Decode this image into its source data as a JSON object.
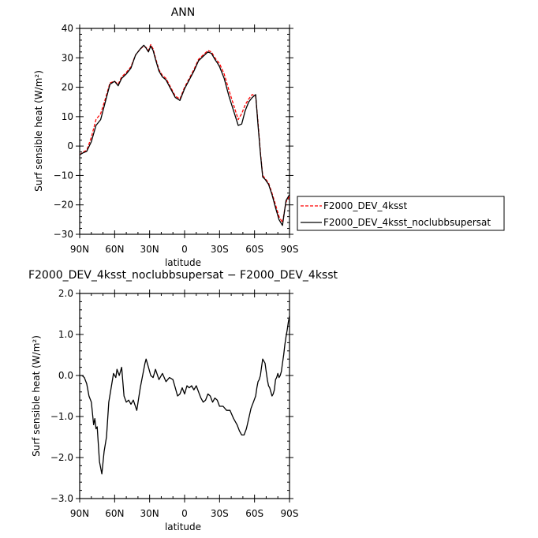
{
  "chart_data": [
    {
      "type": "line",
      "title": "ANN",
      "xlabel": "latitude",
      "ylabel": "Surf sensible heat (W/m²)",
      "x_ticks": [
        90,
        60,
        30,
        0,
        -30,
        -60,
        -90
      ],
      "x_tick_labels": [
        "90N",
        "60N",
        "30N",
        "0",
        "30S",
        "60S",
        "90S"
      ],
      "xlim": [
        90,
        -90
      ],
      "y_ticks": [
        40,
        30,
        20,
        10,
        0,
        -10,
        -20,
        -30
      ],
      "y_tick_labels": [
        "40",
        "30",
        "20",
        "10",
        "0",
        "−10",
        "−20",
        "−30"
      ],
      "ylim": [
        -30,
        40
      ],
      "legend": "right",
      "grid": false,
      "series": [
        {
          "name": "F2000_DEV_4ksst",
          "color": "#ff0000",
          "dash": true,
          "x": [
            90,
            87,
            84,
            80,
            76,
            72,
            68,
            64,
            60,
            57,
            54,
            50,
            46,
            42,
            38,
            35,
            33,
            31,
            29,
            27,
            25,
            22,
            19,
            16,
            12,
            8,
            4,
            1,
            0,
            -4,
            -8,
            -12,
            -16,
            -20,
            -23,
            -26,
            -28,
            -30,
            -34,
            -38,
            -42,
            -46,
            -49,
            -52,
            -55,
            -58,
            -61,
            -63,
            -65,
            -67,
            -69,
            -72,
            -75,
            -78,
            -81,
            -84,
            -87,
            -90
          ],
          "y": [
            -3,
            -2,
            -1.5,
            3,
            9,
            11,
            16,
            21.5,
            22,
            21,
            23.5,
            25,
            27,
            31,
            33,
            34,
            33.5,
            32.5,
            34.5,
            33,
            30,
            26,
            24,
            23,
            20,
            17,
            16,
            19,
            20,
            23,
            26,
            29.5,
            31,
            32.5,
            32,
            30,
            29,
            28,
            24.5,
            19,
            14,
            9,
            11,
            14,
            16,
            17.5,
            17,
            8,
            -2,
            -10,
            -11,
            -12.5,
            -16,
            -20,
            -24,
            -26,
            -19,
            -17
          ]
        },
        {
          "name": "F2000_DEV_4ksst_noclubbsupersat",
          "color": "#000000",
          "dash": false,
          "x": [
            90,
            87,
            84,
            80,
            76,
            72,
            68,
            64,
            60,
            57,
            54,
            50,
            46,
            42,
            38,
            35,
            33,
            31,
            29,
            27,
            25,
            22,
            19,
            16,
            12,
            8,
            4,
            1,
            0,
            -4,
            -8,
            -12,
            -16,
            -20,
            -23,
            -26,
            -28,
            -30,
            -34,
            -38,
            -42,
            -46,
            -49,
            -52,
            -55,
            -58,
            -61,
            -63,
            -65,
            -67,
            -69,
            -72,
            -75,
            -78,
            -81,
            -84,
            -87,
            -90
          ],
          "y": [
            -3,
            -2.3,
            -1.8,
            1.5,
            7,
            9,
            15,
            21,
            22,
            20.5,
            23,
            24.5,
            26.5,
            31,
            33,
            34.3,
            33.3,
            32,
            34,
            32.5,
            29.5,
            25.5,
            23.5,
            22.5,
            19.5,
            16.5,
            15.5,
            18.5,
            19.5,
            22.5,
            25.5,
            29,
            30.5,
            32,
            31.5,
            29.5,
            28.3,
            27,
            23,
            17,
            12,
            7,
            7.5,
            12,
            15,
            16.5,
            17.5,
            7,
            -2.5,
            -10.5,
            -11.3,
            -13,
            -16.5,
            -21,
            -25,
            -27,
            -18.5,
            -16.5
          ]
        }
      ]
    },
    {
      "type": "line",
      "title": "F2000_DEV_4ksst_noclubbsupersat − F2000_DEV_4ksst",
      "xlabel": "latitude",
      "ylabel": "Surf sensible heat (W/m²)",
      "x_ticks": [
        90,
        60,
        30,
        0,
        -30,
        -60,
        -90
      ],
      "x_tick_labels": [
        "90N",
        "60N",
        "30N",
        "0",
        "30S",
        "60S",
        "90S"
      ],
      "xlim": [
        90,
        -90
      ],
      "y_ticks": [
        2,
        1,
        0,
        -1,
        -2,
        -3
      ],
      "y_tick_labels": [
        "2.0",
        "1.0",
        "0.0",
        "−1.0",
        "−2.0",
        "−3.0"
      ],
      "ylim": [
        -3,
        2
      ],
      "grid": false,
      "series": [
        {
          "color": "#000000",
          "x": [
            90,
            88,
            86,
            84,
            82,
            80,
            78,
            77,
            76,
            75,
            73,
            71,
            69,
            67,
            65,
            63,
            61,
            59,
            58,
            56,
            54,
            52,
            50,
            48,
            46,
            44,
            41,
            38,
            36,
            34,
            33,
            31,
            29,
            27,
            25,
            22,
            19,
            16,
            13,
            10,
            8,
            6,
            4,
            2,
            0,
            -2,
            -4,
            -6,
            -8,
            -10,
            -12,
            -14,
            -16,
            -18,
            -20,
            -22,
            -24,
            -26,
            -28,
            -30,
            -33,
            -36,
            -39,
            -42,
            -45,
            -47,
            -49,
            -51,
            -53,
            -55,
            -57,
            -59,
            -61,
            -62,
            -63,
            -64,
            -65,
            -66,
            -67,
            -69,
            -70,
            -71,
            -72,
            -73,
            -74,
            -75,
            -76,
            -77,
            -78,
            -79,
            -80,
            -81,
            -82,
            -83,
            -84,
            -85,
            -86,
            -87,
            -88,
            -89,
            -90
          ],
          "y": [
            0,
            0,
            -0.05,
            -0.2,
            -0.5,
            -0.65,
            -1.2,
            -1.05,
            -1.3,
            -1.25,
            -2.1,
            -2.4,
            -1.85,
            -1.5,
            -0.65,
            -0.3,
            0.05,
            -0.05,
            0.15,
            0,
            0.2,
            -0.5,
            -0.65,
            -0.6,
            -0.7,
            -0.6,
            -0.85,
            -0.3,
            0,
            0.3,
            0.4,
            0.2,
            0,
            -0.05,
            0.15,
            -0.1,
            0.05,
            -0.15,
            -0.05,
            -0.1,
            -0.3,
            -0.5,
            -0.45,
            -0.3,
            -0.45,
            -0.25,
            -0.3,
            -0.25,
            -0.35,
            -0.25,
            -0.4,
            -0.55,
            -0.65,
            -0.6,
            -0.45,
            -0.5,
            -0.65,
            -0.55,
            -0.6,
            -0.75,
            -0.75,
            -0.85,
            -0.85,
            -1.05,
            -1.2,
            -1.35,
            -1.45,
            -1.45,
            -1.3,
            -1.05,
            -0.8,
            -0.65,
            -0.5,
            -0.3,
            -0.15,
            -0.1,
            0,
            0.2,
            0.4,
            0.3,
            0.1,
            -0.1,
            -0.25,
            -0.3,
            -0.4,
            -0.5,
            -0.45,
            -0.35,
            -0.1,
            -0.05,
            0.05,
            -0.05,
            0,
            0.1,
            0.3,
            0.5,
            0.75,
            0.95,
            1.1,
            1.3,
            1.45
          ]
        }
      ]
    }
  ]
}
